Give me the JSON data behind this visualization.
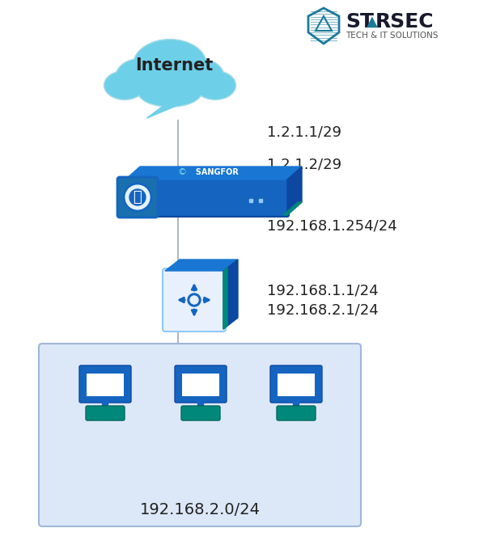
{
  "background_color": "#ffffff",
  "line_color": "#b0b8c8",
  "ip_internet_side": "1.2.1.1/29",
  "ip_sangfor_wan": "1.2.1.2/29",
  "ip_sangfor_lan": "192.168.1.254/24",
  "ip_switch_1": "192.168.1.1/24",
  "ip_switch_2": "192.168.2.1/24",
  "ip_lan_net": "192.168.2.0/24",
  "label_internet": "Internet",
  "label_logo_main": "ST▲RSEC",
  "label_logo_sub": "TECH & IT SOLUTIONS",
  "cloud_color_body": "#6dcfe8",
  "cloud_color_stroke": "#a8dce8",
  "sangfor_body_color": "#1565c0",
  "sangfor_top_color": "#1976d2",
  "sangfor_right_color": "#0d47a1",
  "switch_top_color": "#1976d2",
  "switch_right_color": "#0d47a1",
  "switch_face_color": "#e8f0fe",
  "switch_icon_color": "#1565c0",
  "pc_body_color": "#1565c0",
  "pc_stand_color": "#00897b",
  "lan_box_color": "#dce8f8",
  "lan_box_border": "#a0b8d8",
  "text_color": "#222222",
  "font_size_ip": 13,
  "font_size_label": 15,
  "shield_color": "#1a7a9a",
  "logo_text_color": "#1a1a2e",
  "logo_sub_color": "#555555"
}
